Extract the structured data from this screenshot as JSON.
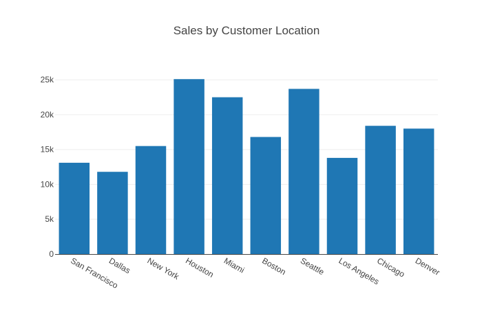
{
  "chart_data": {
    "type": "bar",
    "title": "Sales by Customer Location",
    "xlabel": "",
    "ylabel": "",
    "categories": [
      "San Francisco",
      "Dallas",
      "New York",
      "Houston",
      "Miami",
      "Boston",
      "Seattle",
      "Los Angeles",
      "Chicago",
      "Denver"
    ],
    "values": [
      13100,
      11800,
      15500,
      25100,
      22500,
      16800,
      23700,
      13800,
      18400,
      18000
    ],
    "ylim": [
      0,
      26600
    ],
    "yticks": [
      0,
      5000,
      10000,
      15000,
      20000,
      25000
    ],
    "ytick_labels": [
      "0",
      "5k",
      "10k",
      "15k",
      "20k",
      "25k"
    ],
    "grid": true,
    "bar_color": "#1f77b4"
  }
}
